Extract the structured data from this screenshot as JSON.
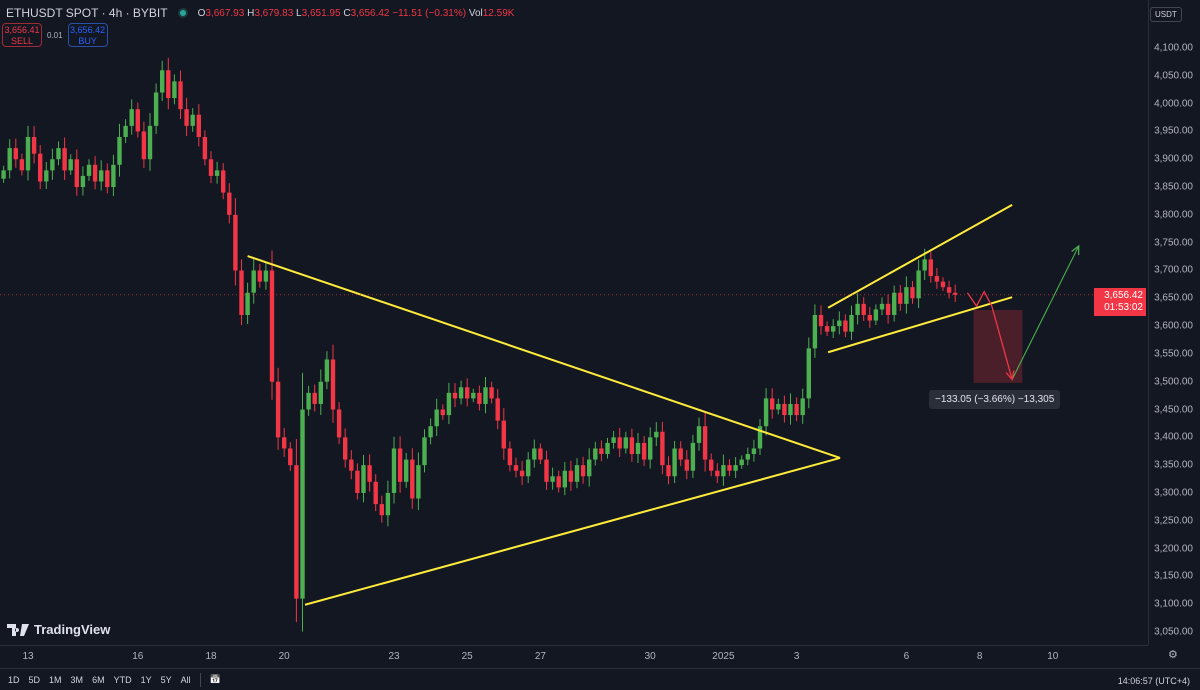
{
  "header": {
    "symbol": "ETHUSDT SPOT · 4h · BYBIT",
    "o_label": "O",
    "open": "3,667.93",
    "h_label": "H",
    "high": "3,679.83",
    "l_label": "L",
    "low": "3,651.95",
    "c_label": "C",
    "close": "3,656.42",
    "change": "−11.51 (−0.31%)",
    "vol_label": "Vol",
    "volume": "12.59K"
  },
  "trade": {
    "sell_price": "3,656.41",
    "sell_label": "SELL",
    "spread": "0.01",
    "buy_price": "3,656.42",
    "buy_label": "BUY"
  },
  "currency": "USDT",
  "current_price": {
    "price": "3,656.42",
    "countdown": "01:53:02"
  },
  "measure_label": "−133.05 (−3.66%) −13,305",
  "logo": "TradingView",
  "timeframes": [
    "1D",
    "5D",
    "1M",
    "3M",
    "6M",
    "YTD",
    "1Y",
    "5Y",
    "All"
  ],
  "clock": "14:06:57 (UTC+4)",
  "colors": {
    "up": "#26a69a",
    "up_fill": "#4caf50",
    "down": "#f23645",
    "trendline": "#ffeb3b",
    "background": "#131722"
  },
  "chart_data": {
    "type": "candlestick",
    "interval": "4h",
    "start": "2024-12-12T08:00",
    "ylim": [
      3025,
      4125
    ],
    "y_ticks": [
      "4,100.00",
      "4,050.00",
      "4,000.00",
      "3,950.00",
      "3,900.00",
      "3,850.00",
      "3,800.00",
      "3,750.00",
      "3,700.00",
      "3,650.00",
      "3,600.00",
      "3,550.00",
      "3,500.00",
      "3,450.00",
      "3,400.00",
      "3,350.00",
      "3,300.00",
      "3,250.00",
      "3,200.00",
      "3,150.00",
      "3,100.00",
      "3,050.00"
    ],
    "x_ticks": [
      {
        "label": "13",
        "date": "2024-12-13"
      },
      {
        "label": "16",
        "date": "2024-12-16"
      },
      {
        "label": "18",
        "date": "2024-12-18"
      },
      {
        "label": "20",
        "date": "2024-12-20"
      },
      {
        "label": "23",
        "date": "2024-12-23"
      },
      {
        "label": "25",
        "date": "2024-12-25"
      },
      {
        "label": "27",
        "date": "2024-12-27"
      },
      {
        "label": "30",
        "date": "2024-12-30"
      },
      {
        "label": "2025",
        "date": "2025-01-01"
      },
      {
        "label": "3",
        "date": "2025-01-03"
      },
      {
        "label": "6",
        "date": "2025-01-06"
      },
      {
        "label": "8",
        "date": "2025-01-08"
      },
      {
        "label": "10",
        "date": "2025-01-10"
      }
    ],
    "closes": [
      3880,
      3920,
      3900,
      3880,
      3940,
      3910,
      3860,
      3880,
      3900,
      3920,
      3880,
      3900,
      3850,
      3870,
      3890,
      3860,
      3880,
      3850,
      3890,
      3940,
      3960,
      3990,
      3950,
      3900,
      3960,
      4020,
      4060,
      4010,
      4040,
      3990,
      3960,
      3980,
      3940,
      3900,
      3870,
      3880,
      3840,
      3800,
      3700,
      3620,
      3660,
      3700,
      3680,
      3700,
      3500,
      3400,
      3380,
      3350,
      3110,
      3450,
      3480,
      3460,
      3500,
      3540,
      3450,
      3400,
      3360,
      3340,
      3300,
      3350,
      3320,
      3280,
      3260,
      3300,
      3380,
      3320,
      3360,
      3290,
      3350,
      3400,
      3420,
      3450,
      3440,
      3480,
      3470,
      3490,
      3470,
      3480,
      3460,
      3490,
      3470,
      3430,
      3380,
      3350,
      3340,
      3330,
      3360,
      3380,
      3360,
      3320,
      3330,
      3310,
      3340,
      3320,
      3350,
      3330,
      3360,
      3380,
      3370,
      3390,
      3400,
      3380,
      3400,
      3370,
      3390,
      3360,
      3400,
      3410,
      3350,
      3330,
      3380,
      3360,
      3340,
      3390,
      3420,
      3360,
      3340,
      3330,
      3350,
      3340,
      3350,
      3360,
      3370,
      3380,
      3420,
      3470,
      3450,
      3460,
      3440,
      3460,
      3440,
      3470,
      3560,
      3620,
      3600,
      3590,
      3600,
      3610,
      3590,
      3620,
      3640,
      3620,
      3610,
      3630,
      3640,
      3620,
      3660,
      3640,
      3670,
      3650,
      3700,
      3720,
      3690,
      3680,
      3670,
      3660,
      3656.42
    ],
    "drawings": {
      "triangle_upper": [
        [
          "2024-12-19T00:00",
          3726
        ],
        [
          "2025-01-04T04:30",
          3363
        ]
      ],
      "triangle_lower": [
        [
          "2024-12-20T13:40",
          3099
        ],
        [
          "2025-01-04T04:30",
          3363
        ]
      ],
      "channel_upper": [
        [
          "2025-01-03T20:40",
          3633
        ],
        [
          "2025-01-08T21:20",
          3818
        ]
      ],
      "channel_lower": [
        [
          "2025-01-03T20:40",
          3553
        ],
        [
          "2025-01-08T21:20",
          3652
        ]
      ],
      "projection_down": [
        [
          "2025-01-07T16:00",
          3660
        ],
        [
          "2025-01-07T22:00",
          3636
        ],
        [
          "2025-01-08T03:00",
          3662
        ],
        [
          "2025-01-08T08:00",
          3636
        ],
        [
          "2025-01-08T21:20",
          3504
        ]
      ],
      "projection_up": [
        [
          "2025-01-08T21:20",
          3504
        ],
        [
          "2025-01-10T17:00",
          3744
        ]
      ],
      "measure_box": {
        "from": [
          "2025-01-07T20:00",
          3629
        ],
        "to": [
          "2025-01-09T04:00",
          3498
        ]
      }
    }
  }
}
